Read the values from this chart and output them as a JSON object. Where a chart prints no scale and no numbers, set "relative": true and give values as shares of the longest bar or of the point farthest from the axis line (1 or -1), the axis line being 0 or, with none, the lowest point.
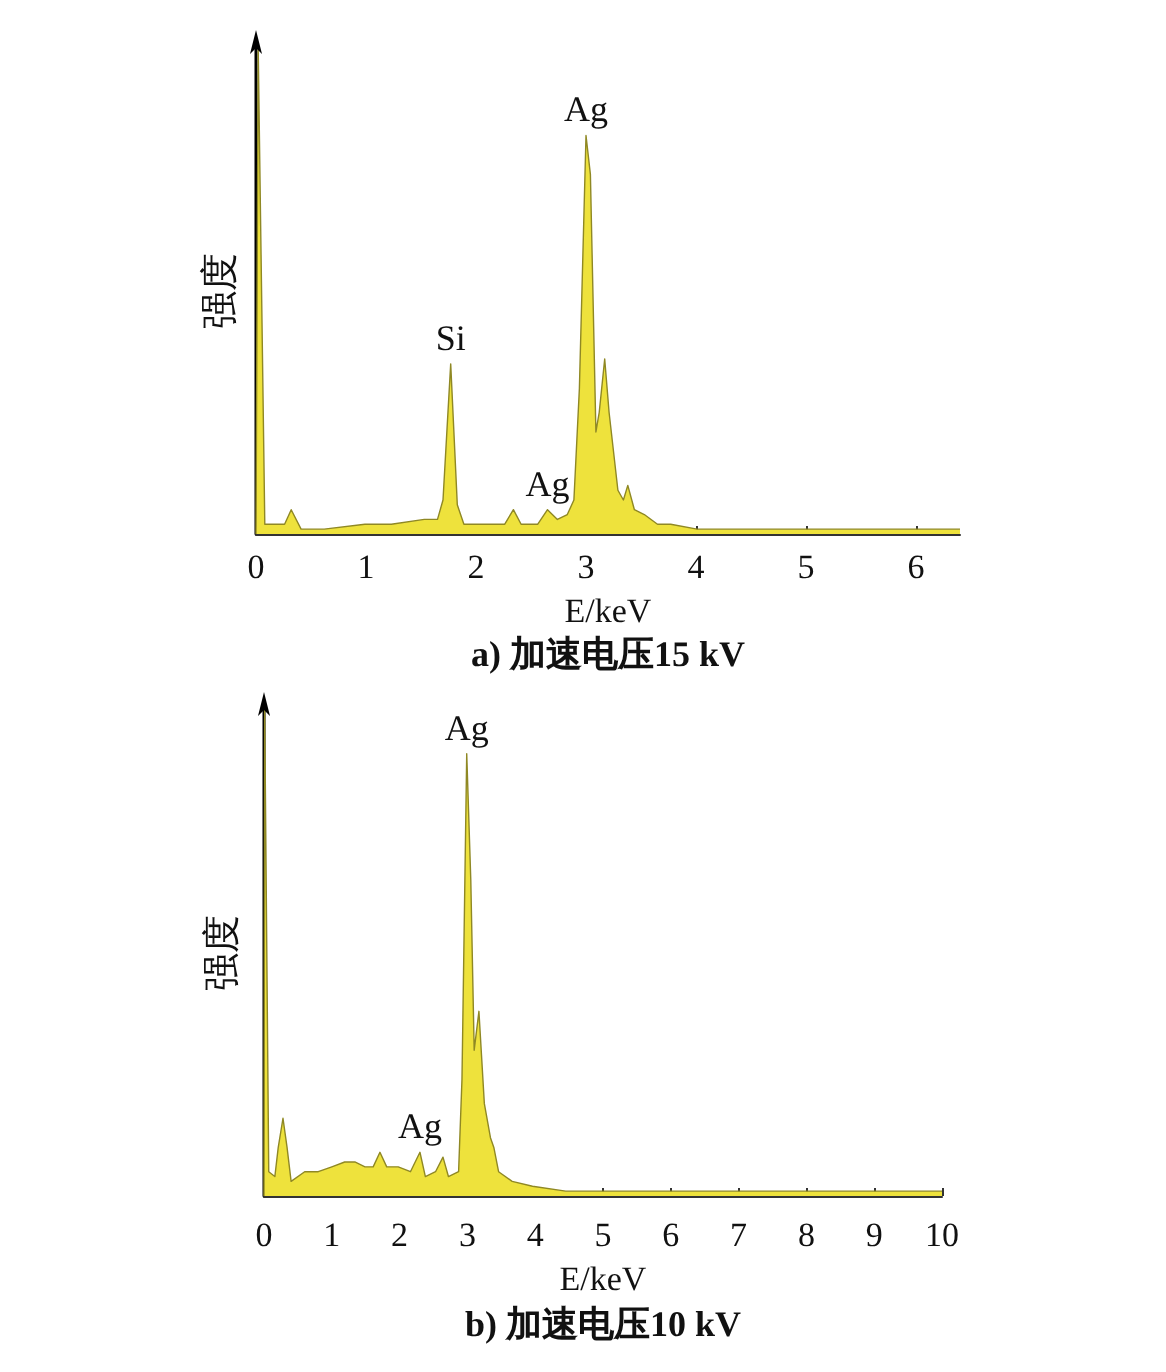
{
  "chart_data": [
    {
      "type": "area",
      "title": "a) 加速电压15 kV",
      "xlabel": "E/keV",
      "ylabel": "强度",
      "relative": true,
      "color": "#eee23c",
      "xlim": [
        0,
        6.4
      ],
      "xticks": [
        0,
        1,
        2,
        3,
        4,
        5,
        6
      ],
      "x": [
        0,
        0.02,
        0.08,
        0.14,
        0.26,
        0.32,
        0.41,
        0.62,
        0.99,
        1.23,
        1.53,
        1.65,
        1.7,
        1.77,
        1.83,
        1.89,
        2.08,
        2.26,
        2.34,
        2.41,
        2.56,
        2.65,
        2.74,
        2.83,
        2.89,
        2.94,
        3.0,
        3.04,
        3.09,
        3.12,
        3.17,
        3.21,
        3.29,
        3.34,
        3.38,
        3.44,
        3.53,
        3.65,
        3.77,
        4.01,
        4.26,
        4.86,
        5.47,
        6.07,
        6.4
      ],
      "values": [
        0,
        1,
        0.02,
        0.02,
        0.02,
        0.05,
        0.01,
        0.01,
        0.02,
        0.02,
        0.03,
        0.03,
        0.07,
        0.35,
        0.06,
        0.02,
        0.02,
        0.02,
        0.05,
        0.02,
        0.02,
        0.05,
        0.03,
        0.04,
        0.07,
        0.3,
        0.82,
        0.74,
        0.21,
        0.25,
        0.36,
        0.25,
        0.09,
        0.07,
        0.1,
        0.05,
        0.04,
        0.02,
        0.02,
        0.01,
        0.01,
        0.01,
        0.01,
        0.01,
        0.01
      ],
      "annotations": [
        {
          "text": "Ag",
          "x": 3.0,
          "y": 0.82
        },
        {
          "text": "Si",
          "x": 1.77,
          "y": 0.35
        },
        {
          "text": "Ag",
          "x": 2.65,
          "y": 0.05
        }
      ]
    },
    {
      "type": "area",
      "title": "b) 加速电压10 kV",
      "xlabel": "E/keV",
      "ylabel": "强度",
      "relative": true,
      "color": "#eee23c",
      "xlim": [
        0,
        10
      ],
      "xticks": [
        0,
        1,
        2,
        3,
        4,
        5,
        6,
        7,
        8,
        9,
        10
      ],
      "x": [
        0,
        0.01,
        0.07,
        0.16,
        0.21,
        0.28,
        0.34,
        0.4,
        0.6,
        0.8,
        1.0,
        1.19,
        1.34,
        1.49,
        1.61,
        1.71,
        1.81,
        1.98,
        2.16,
        2.3,
        2.38,
        2.53,
        2.64,
        2.72,
        2.87,
        2.92,
        2.99,
        3.05,
        3.1,
        3.17,
        3.25,
        3.34,
        3.39,
        3.46,
        3.66,
        3.96,
        4.45,
        4.95,
        5.93,
        6.92,
        7.91,
        8.89,
        10
      ],
      "values": [
        0,
        1,
        0.05,
        0.04,
        0.1,
        0.16,
        0.1,
        0.03,
        0.05,
        0.05,
        0.06,
        0.07,
        0.07,
        0.06,
        0.06,
        0.09,
        0.06,
        0.06,
        0.05,
        0.09,
        0.04,
        0.05,
        0.08,
        0.04,
        0.05,
        0.24,
        0.91,
        0.65,
        0.3,
        0.38,
        0.19,
        0.12,
        0.1,
        0.05,
        0.03,
        0.02,
        0.01,
        0.01,
        0.01,
        0.01,
        0.01,
        0.01,
        0.01
      ],
      "annotations": [
        {
          "text": "Ag",
          "x": 2.99,
          "y": 0.91
        },
        {
          "text": "Ag",
          "x": 2.3,
          "y": 0.09
        }
      ]
    }
  ]
}
